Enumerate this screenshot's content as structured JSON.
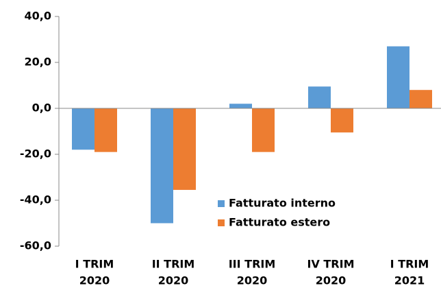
{
  "chart_data": {
    "type": "bar",
    "categories": [
      [
        "I TRIM",
        "2020"
      ],
      [
        "II TRIM",
        "2020"
      ],
      [
        "III TRIM",
        "2020"
      ],
      [
        "IV TRIM",
        "2020"
      ],
      [
        "I TRIM",
        "2021"
      ]
    ],
    "series": [
      {
        "name": "Fatturato interno",
        "color": "#5b9bd5",
        "values": [
          -18,
          -50,
          2,
          9.5,
          27
        ]
      },
      {
        "name": "Fatturato estero",
        "color": "#ed7d31",
        "values": [
          -19,
          -35.5,
          -19,
          -10.5,
          8
        ]
      }
    ],
    "ylim": [
      -60,
      40
    ],
    "yticks": [
      {
        "value": -60,
        "label": "-60,0"
      },
      {
        "value": -40,
        "label": "-40,0"
      },
      {
        "value": -20,
        "label": "-20,0"
      },
      {
        "value": 0,
        "label": "0,0"
      },
      {
        "value": 20,
        "label": "20,0"
      },
      {
        "value": 40,
        "label": "40,0"
      }
    ]
  }
}
